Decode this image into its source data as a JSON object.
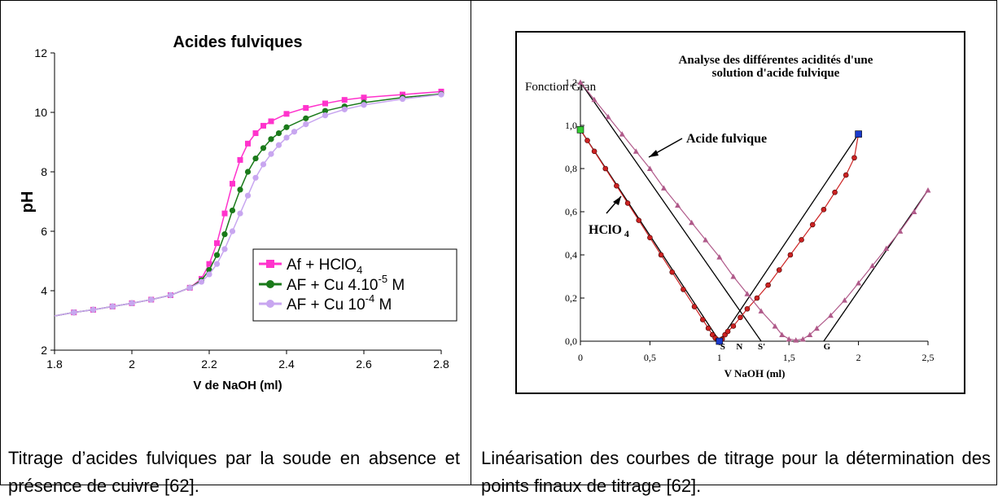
{
  "left_chart": {
    "title": "Acides fulviques",
    "xlabel": "V de NaOH (ml)",
    "ylabel": "pH",
    "x_ticks": [
      "1.8",
      "2",
      "2.2",
      "2.4",
      "2.6",
      "2.8"
    ],
    "y_ticks": [
      "2",
      "4",
      "6",
      "8",
      "10",
      "12"
    ],
    "legend": [
      {
        "pre": "Af + HClO",
        "sub": "4",
        "post": "",
        "color": "#ff33cc",
        "marker": "square"
      },
      {
        "pre": "AF + Cu 4.10",
        "sup": "-5",
        "post": " M",
        "color": "#1a7a1a",
        "marker": "circle"
      },
      {
        "pre": "AF + Cu 10",
        "sup": "-4",
        "post": " M",
        "color": "#c8a6f0",
        "marker": "circle"
      }
    ]
  },
  "right_chart": {
    "title_line1": "Analyse des différentes acidités d'une",
    "title_line2": "solution d'acide fulvique",
    "ylabel": "Fonction Gran",
    "xlabel": "V NaOH (ml)",
    "x_ticks": [
      "0",
      "0,5",
      "1",
      "1,5",
      "2",
      "2,5"
    ],
    "y_ticks": [
      "0,0",
      "0,2",
      "0,4",
      "0,6",
      "0,8",
      "1,0",
      "1,2"
    ],
    "annotation_fulvic": "Acide fulvique",
    "annotation_hclo4": "HClO",
    "annotation_hclo4_sub": "4",
    "points": [
      "S",
      "N",
      "S'",
      "G"
    ]
  },
  "captions": {
    "left": "Titrage d’acides fulviques par la soude en absence et présence de cuivre [62].",
    "right": "Linéarisation des courbes de titrage pour la détermination des points finaux de titrage [62]."
  },
  "chart_data": [
    {
      "type": "line",
      "title": "Acides fulviques",
      "xlabel": "V de NaOH (ml)",
      "ylabel": "pH",
      "xlim": [
        1.8,
        2.8
      ],
      "ylim": [
        2,
        12
      ],
      "grid": false,
      "legend_position": "bottom-right",
      "series": [
        {
          "name": "Af + HClO4",
          "color": "#ff33cc",
          "x": [
            1.8,
            1.85,
            1.9,
            1.95,
            2.0,
            2.05,
            2.1,
            2.15,
            2.18,
            2.2,
            2.22,
            2.24,
            2.26,
            2.28,
            2.3,
            2.32,
            2.34,
            2.36,
            2.4,
            2.45,
            2.5,
            2.55,
            2.6,
            2.7,
            2.8
          ],
          "y": [
            3.15,
            3.27,
            3.36,
            3.47,
            3.58,
            3.7,
            3.85,
            4.1,
            4.4,
            4.9,
            5.6,
            6.6,
            7.6,
            8.4,
            8.95,
            9.3,
            9.55,
            9.7,
            9.95,
            10.15,
            10.3,
            10.42,
            10.5,
            10.6,
            10.7
          ]
        },
        {
          "name": "AF + Cu 4.10-5 M",
          "color": "#1a7a1a",
          "x": [
            1.8,
            1.85,
            1.9,
            1.95,
            2.0,
            2.05,
            2.1,
            2.15,
            2.18,
            2.2,
            2.22,
            2.24,
            2.26,
            2.28,
            2.3,
            2.32,
            2.34,
            2.36,
            2.38,
            2.4,
            2.45,
            2.5,
            2.55,
            2.6,
            2.7,
            2.8
          ],
          "y": [
            3.15,
            3.27,
            3.36,
            3.47,
            3.58,
            3.7,
            3.85,
            4.1,
            4.35,
            4.7,
            5.2,
            5.9,
            6.7,
            7.4,
            8.0,
            8.45,
            8.8,
            9.1,
            9.3,
            9.5,
            9.8,
            10.05,
            10.2,
            10.33,
            10.5,
            10.62
          ]
        },
        {
          "name": "AF + Cu 10-4 M",
          "color": "#c8a6f0",
          "x": [
            1.8,
            1.85,
            1.9,
            1.95,
            2.0,
            2.05,
            2.1,
            2.15,
            2.18,
            2.2,
            2.22,
            2.24,
            2.26,
            2.28,
            2.3,
            2.32,
            2.34,
            2.36,
            2.38,
            2.4,
            2.42,
            2.45,
            2.5,
            2.55,
            2.6,
            2.7,
            2.8
          ],
          "y": [
            3.15,
            3.27,
            3.36,
            3.47,
            3.58,
            3.7,
            3.85,
            4.1,
            4.3,
            4.55,
            4.9,
            5.4,
            6.0,
            6.6,
            7.2,
            7.8,
            8.25,
            8.6,
            8.9,
            9.15,
            9.35,
            9.6,
            9.9,
            10.1,
            10.25,
            10.45,
            10.6
          ]
        }
      ]
    },
    {
      "type": "scatter",
      "title": "Analyse des différentes acidités d'une solution d'acide fulvique",
      "xlabel": "V NaOH (ml)",
      "ylabel": "Fonction Gran",
      "xlim": [
        0,
        2.5
      ],
      "ylim": [
        0,
        1.2
      ],
      "grid": false,
      "series": [
        {
          "name": "HClO4",
          "color": "#cc2222",
          "x": [
            0,
            0.05,
            0.1,
            0.18,
            0.26,
            0.34,
            0.42,
            0.5,
            0.58,
            0.66,
            0.74,
            0.82,
            0.88,
            0.92,
            0.95,
            0.97,
            0.99,
            1.0,
            1.02,
            1.04,
            1.06,
            1.1,
            1.15,
            1.2,
            1.27,
            1.35,
            1.43,
            1.51,
            1.59,
            1.67,
            1.75,
            1.83,
            1.91,
            1.97,
            2.0
          ],
          "y": [
            0.98,
            0.93,
            0.88,
            0.8,
            0.72,
            0.64,
            0.56,
            0.48,
            0.4,
            0.32,
            0.24,
            0.16,
            0.1,
            0.06,
            0.03,
            0.015,
            0.005,
            0.0,
            0.01,
            0.03,
            0.045,
            0.07,
            0.11,
            0.15,
            0.2,
            0.26,
            0.33,
            0.4,
            0.47,
            0.54,
            0.61,
            0.69,
            0.77,
            0.85,
            0.96
          ]
        },
        {
          "name": "Acide fulvique",
          "color": "#b05a8a",
          "x": [
            0,
            0.1,
            0.2,
            0.3,
            0.4,
            0.5,
            0.6,
            0.7,
            0.8,
            0.9,
            1.0,
            1.1,
            1.2,
            1.3,
            1.4,
            1.45,
            1.5,
            1.55,
            1.6,
            1.65,
            1.7,
            1.8,
            1.9,
            2.0,
            2.1,
            2.2,
            2.3,
            2.4,
            2.5
          ],
          "y": [
            1.2,
            1.12,
            1.04,
            0.96,
            0.88,
            0.8,
            0.71,
            0.63,
            0.55,
            0.47,
            0.39,
            0.3,
            0.22,
            0.14,
            0.07,
            0.03,
            0.01,
            0.005,
            0.01,
            0.03,
            0.06,
            0.12,
            0.19,
            0.27,
            0.35,
            0.43,
            0.51,
            0.6,
            0.7
          ]
        }
      ],
      "marked_points": [
        {
          "label": "S",
          "x": 1.0
        },
        {
          "label": "N",
          "x": 1.12
        },
        {
          "label": "S'",
          "x": 1.28
        },
        {
          "label": "G",
          "x": 1.75
        }
      ]
    }
  ]
}
